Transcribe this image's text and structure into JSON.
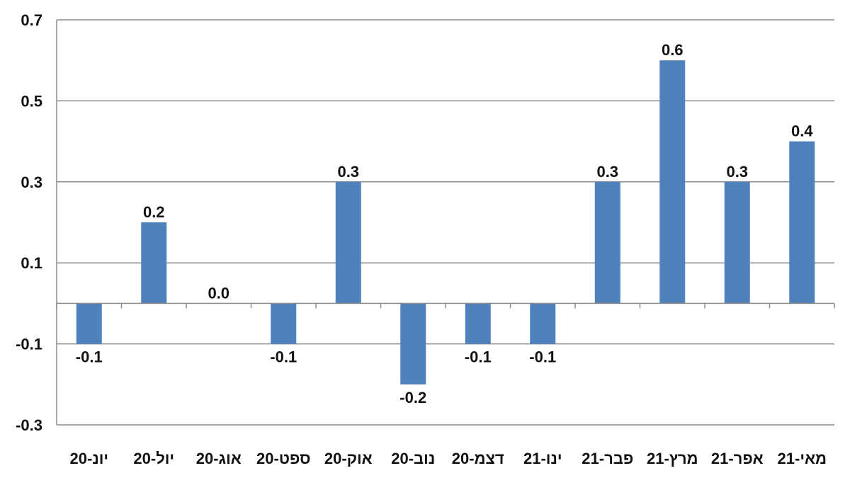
{
  "chart_data": {
    "type": "bar",
    "categories": [
      "יונ-20",
      "יול-20",
      "אוג-20",
      "ספט-20",
      "אוק-20",
      "נוב-20",
      "דצמ-20",
      "ינו-21",
      "פבר-21",
      "מרץ-21",
      "אפר-21",
      "מאי-21"
    ],
    "values": [
      -0.1,
      0.2,
      0.0,
      -0.1,
      0.3,
      -0.2,
      -0.1,
      -0.1,
      0.3,
      0.6,
      0.3,
      0.4
    ],
    "data_labels": [
      "-0.1",
      "0.2",
      "0.0",
      "-0.1",
      "0.3",
      "-0.2",
      "-0.1",
      "-0.1",
      "0.3",
      "0.6",
      "0.3",
      "0.4"
    ],
    "y_ticks": [
      0.7,
      0.5,
      0.3,
      0.1,
      -0.1,
      -0.3
    ],
    "y_tick_labels": [
      "0.7",
      "0.5",
      "0.3",
      "0.1",
      "-0.1",
      "-0.3"
    ],
    "ylim": [
      -0.3,
      0.7
    ],
    "title": "",
    "xlabel": "",
    "ylabel": "",
    "grid": true,
    "legend": "none",
    "bar_color": "#4f81bd"
  }
}
